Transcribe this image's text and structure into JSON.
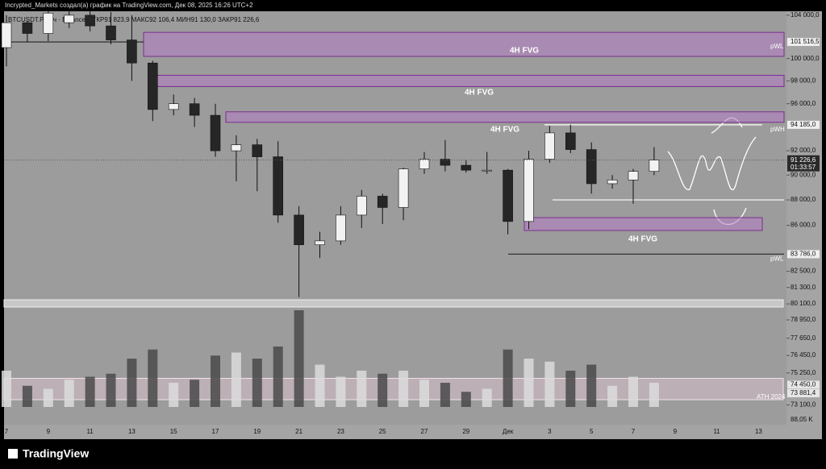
{
  "chart_data": {
    "type": "candlestick",
    "header": "Incrypted_Markets создал(а) график на TradingView.com, Дек 08, 2025 16:26 UTC+2",
    "symbol_line": "BTCUSDT.P · 4ч · Binance  ОТКР91 823,9  МАКС92 106,4  МИН91 130,0  ЗАКР91 226,6",
    "footer": "TradingView",
    "log_scale": true,
    "categories": [
      "7",
      null,
      "9",
      null,
      "11",
      null,
      "13",
      null,
      "15",
      null,
      "17",
      null,
      "19",
      null,
      "21",
      null,
      "23",
      null,
      "25",
      null,
      "27",
      null,
      "29",
      null,
      "Дек",
      null,
      "3",
      null,
      "5",
      null,
      "7",
      null,
      "9",
      null,
      "11",
      null,
      "13"
    ],
    "open": [
      101000,
      103300,
      102300,
      103300,
      104000,
      103000,
      101700,
      99600,
      95500,
      96000,
      95000,
      92000,
      92500,
      91500,
      86800,
      84500,
      84800,
      86800,
      88300,
      87400,
      90500,
      91300,
      90800,
      90400,
      90400,
      86300,
      91300,
      93500,
      92100,
      89300,
      89600,
      90300,
      null,
      null,
      null,
      null,
      null
    ],
    "high": [
      104000,
      103500,
      104400,
      104500,
      104400,
      104300,
      104000,
      99800,
      96800,
      96500,
      96000,
      93300,
      93000,
      92800,
      87500,
      85500,
      87500,
      88800,
      88500,
      90600,
      91900,
      92900,
      91200,
      91900,
      90500,
      92000,
      94100,
      94200,
      92700,
      90000,
      90500,
      92300,
      null,
      null,
      null,
      null,
      null
    ],
    "low": [
      99300,
      101500,
      101600,
      102800,
      102500,
      101300,
      98000,
      94500,
      95000,
      94000,
      91500,
      89500,
      88700,
      86200,
      80600,
      83500,
      84500,
      85800,
      86100,
      86400,
      90100,
      90300,
      90200,
      90100,
      85300,
      85700,
      91000,
      91800,
      88500,
      88900,
      87700,
      90000,
      null,
      null,
      null,
      null,
      null
    ],
    "close": [
      103300,
      102300,
      104200,
      104000,
      103000,
      101700,
      99600,
      95500,
      96000,
      95000,
      92000,
      92500,
      91500,
      86800,
      84500,
      84800,
      86800,
      88300,
      87400,
      90500,
      91300,
      90800,
      90400,
      90400,
      86300,
      91300,
      93500,
      92100,
      89300,
      89600,
      90300,
      91226.6,
      null,
      null,
      null,
      null,
      null
    ],
    "volume": [
      60,
      35,
      30,
      45,
      50,
      55,
      80,
      95,
      40,
      45,
      85,
      90,
      80,
      100,
      160,
      70,
      50,
      60,
      55,
      60,
      45,
      40,
      25,
      30,
      95,
      80,
      75,
      60,
      70,
      35,
      50,
      40,
      null,
      null,
      null,
      null,
      null
    ],
    "volume_label": "88,05 K",
    "ylim": [
      72600,
      104600
    ],
    "yticks": [
      {
        "value": 104000,
        "label": "104 000,0"
      },
      {
        "value": 100000,
        "label": "100 000,0"
      },
      {
        "value": 98000,
        "label": "98 000,0"
      },
      {
        "value": 96000,
        "label": "96 000,0"
      },
      {
        "value": 92000,
        "label": "92 000,0"
      },
      {
        "value": 90000,
        "label": "90 000,0"
      },
      {
        "value": 88000,
        "label": "88 000,0"
      },
      {
        "value": 86000,
        "label": "86 000,0"
      },
      {
        "value": 82500,
        "label": "82 500,0"
      },
      {
        "value": 81300,
        "label": "81 300,0"
      },
      {
        "value": 80100,
        "label": "80 100,0"
      },
      {
        "value": 78950,
        "label": "78 950,0"
      },
      {
        "value": 77650,
        "label": "77 650,0"
      },
      {
        "value": 76450,
        "label": "76 450,0"
      },
      {
        "value": 75250,
        "label": "75 250,0"
      },
      {
        "value": 73100,
        "label": "73 100,0"
      }
    ],
    "zones": [
      {
        "label": "4H FVG",
        "low": 100200,
        "high": 102400
      },
      {
        "label": "4H FVG",
        "low": 97500,
        "high": 98500
      },
      {
        "label": "4H FVG",
        "low": 94400,
        "high": 95300
      },
      {
        "label": "4H FVG",
        "low": 85600,
        "high": 86600
      }
    ],
    "levels": [
      {
        "value": 101516.5,
        "label": "101 516,5",
        "note": "pWL"
      },
      {
        "value": 94185,
        "label": "94 185,0",
        "note": "pWH"
      },
      {
        "value": 88000
      },
      {
        "value": 83786,
        "label": "83 786,0",
        "note": "pWL"
      }
    ],
    "last": {
      "value": 91226.6,
      "label": "91 226,6",
      "timer": "01:33:57"
    },
    "ath_zone": {
      "label": "ATH 2024",
      "low": 73881.4,
      "low_label": "73 881,4",
      "high": 74450,
      "high_label": "74 450,0"
    },
    "up_color": "#f2f2f2",
    "down_color": "#262626"
  }
}
